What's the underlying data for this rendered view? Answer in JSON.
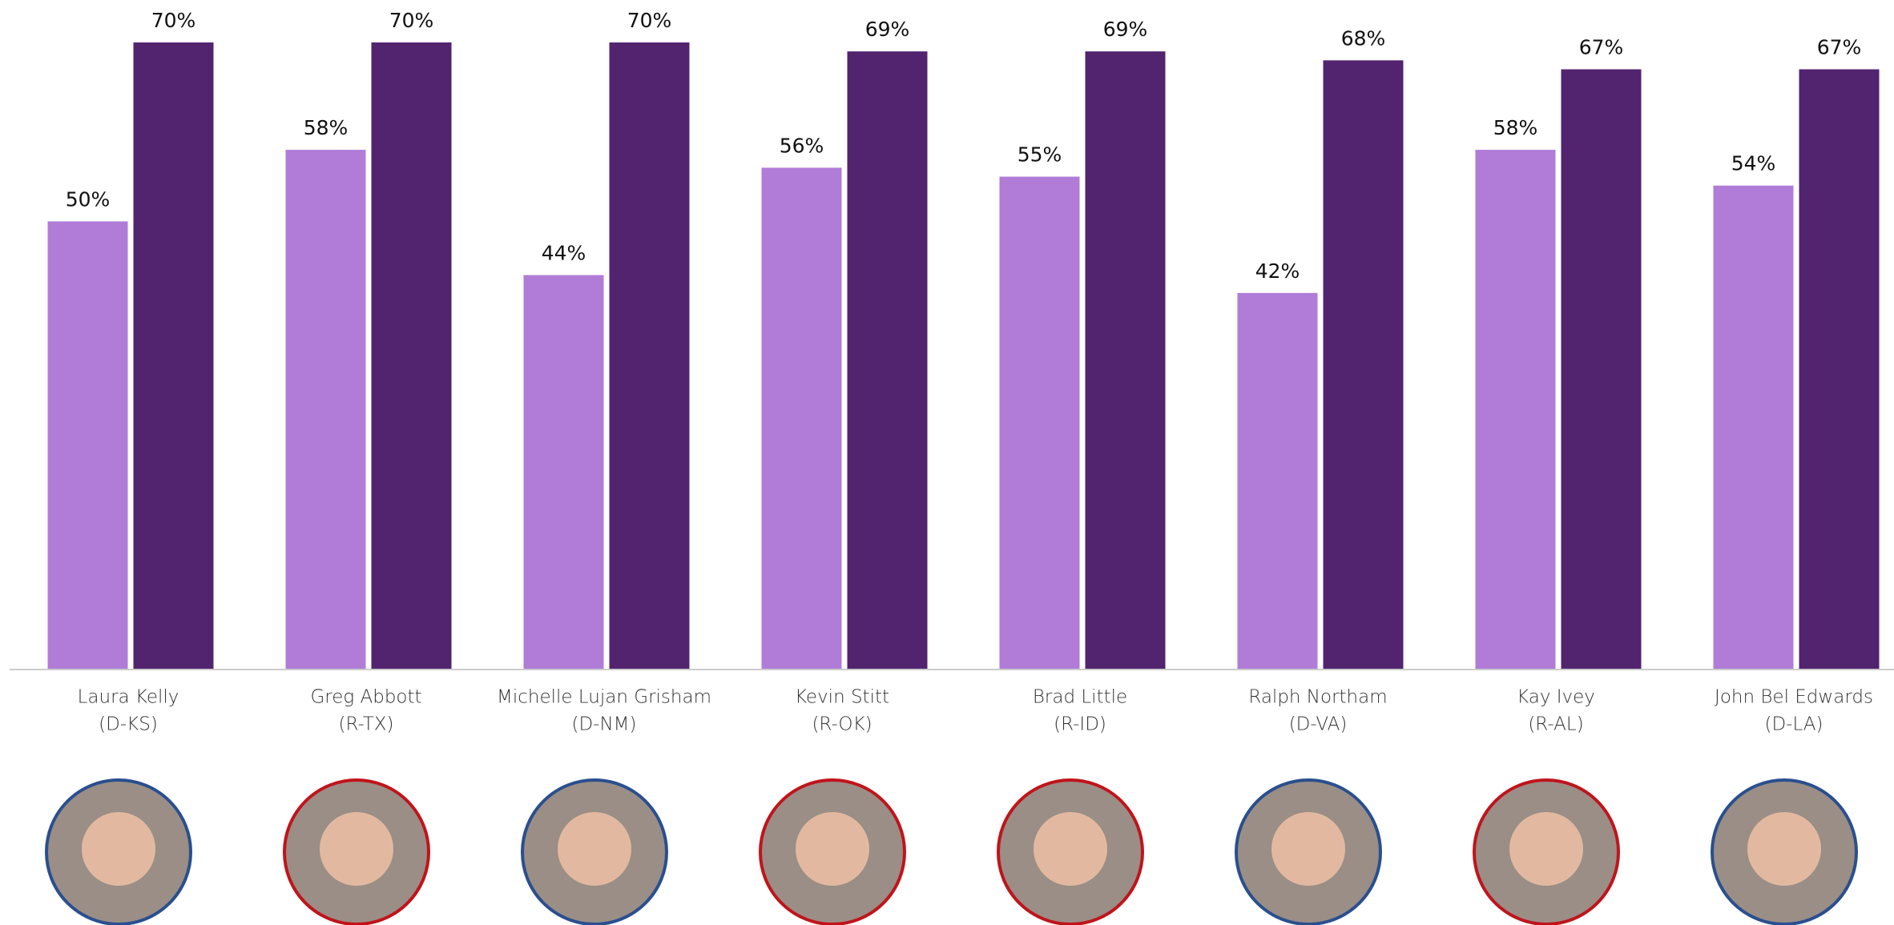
{
  "chart_data": {
    "type": "bar",
    "categories": [
      "Laura Kelly",
      "Greg Abbott",
      "Michelle Lujan Grisham",
      "Kevin Stitt",
      "Brad Little",
      "Ralph Northam",
      "Kay Ivey",
      "John Bel Edwards"
    ],
    "category_sublabels": [
      "(D-KS)",
      "(R-TX)",
      "(D-NM)",
      "(R-OK)",
      "(R-ID)",
      "(D-VA)",
      "(R-AL)",
      "(D-LA)"
    ],
    "series": [
      {
        "color": "#b07cd8",
        "values": [
          50,
          58,
          44,
          56,
          55,
          42,
          58,
          54
        ],
        "value_labels": [
          "50%",
          "58%",
          "44%",
          "56%",
          "55%",
          "42%",
          "58%",
          "54%"
        ]
      },
      {
        "color": "#52236f",
        "values": [
          70,
          70,
          70,
          69,
          69,
          68,
          67,
          67
        ],
        "value_labels": [
          "70%",
          "70%",
          "70%",
          "69%",
          "69%",
          "68%",
          "67%",
          "67%"
        ]
      }
    ],
    "ylim": [
      0,
      70
    ]
  }
}
